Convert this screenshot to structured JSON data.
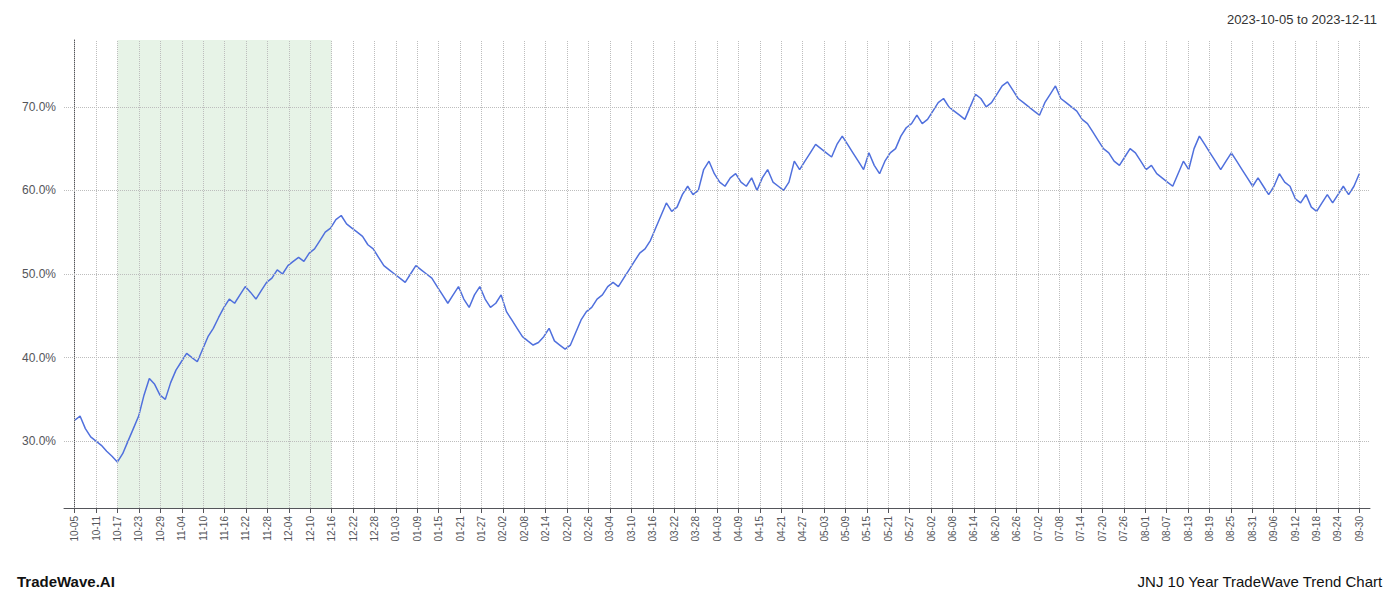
{
  "chart_data": {
    "type": "line",
    "annotations": [
      "2023-10-05 to 2023-12-11",
      "TradeWave.AI",
      "JNJ 10 Year TradeWave Trend Chart"
    ],
    "x": [
      0,
      0.249,
      0.4979,
      0.7469,
      0.9959,
      1.2448,
      1.4938,
      1.7427,
      1.9917,
      2.2407,
      2.4896,
      2.7386,
      2.9876,
      3.2365,
      3.4855,
      3.7344,
      3.9834,
      4.2324,
      4.4813,
      4.7303,
      4.9793,
      5.2282,
      5.4772,
      5.7261,
      5.9751,
      6.2241,
      6.473,
      6.722,
      6.971,
      7.2199,
      7.4689,
      7.7178,
      7.9668,
      8.2158,
      8.4647,
      8.7137,
      8.9627,
      9.2116,
      9.4606,
      9.7095,
      9.9585,
      10.2075,
      10.4564,
      10.7054,
      10.9544,
      11.2033,
      11.4523,
      11.7012,
      11.9502,
      12.1992,
      12.4481,
      12.6971,
      12.9461,
      13.195,
      13.444,
      13.6929,
      13.9419,
      14.1909,
      14.4398,
      14.6888,
      14.9378,
      15.1867,
      15.4357,
      15.6846,
      15.9336,
      16.1826,
      16.4315,
      16.6805,
      16.9295,
      17.1784,
      17.4274,
      17.6763,
      17.9253,
      18.1743,
      18.4232,
      18.6722,
      18.9212,
      19.1701,
      19.4191,
      19.668,
      19.917,
      20.166,
      20.4149,
      20.6639,
      20.9129,
      21.1618,
      21.4108,
      21.6598,
      21.9087,
      22.1577,
      22.4066,
      22.6556,
      22.9046,
      23.1535,
      23.4025,
      23.6515,
      23.9004,
      24.1494,
      24.3983,
      24.6473,
      24.8963,
      25.1452,
      25.3942,
      25.6432,
      25.8921,
      26.1411,
      26.39,
      26.639,
      26.888,
      27.1369,
      27.3859,
      27.6349,
      27.8838,
      28.1328,
      28.3817,
      28.6307,
      28.8797,
      29.1286,
      29.3776,
      29.6266,
      29.8755,
      30.1245,
      30.3734,
      30.6224,
      30.8714,
      31.1203,
      31.3693,
      31.6183,
      31.8672,
      32.1162,
      32.3651,
      32.6141,
      32.8631,
      33.112,
      33.361,
      33.61,
      33.8589,
      34.1079,
      34.3568,
      34.6058,
      34.8548,
      35.1037,
      35.3527,
      35.6017,
      35.8506,
      36.0996,
      36.3485,
      36.5975,
      36.8465,
      37.0954,
      37.3444,
      37.5934,
      37.8423,
      38.0913,
      38.3402,
      38.5892,
      38.8382,
      39.0871,
      39.3361,
      39.5851,
      39.834,
      40.083,
      40.332,
      40.5809,
      40.8299,
      41.0788,
      41.3278,
      41.5768,
      41.8257,
      42.0747,
      42.3237,
      42.5726,
      42.8216,
      43.0705,
      43.3195,
      43.5685,
      43.8174,
      44.0664,
      44.3154,
      44.5643,
      44.8133,
      45.0622,
      45.3112,
      45.5602,
      45.8091,
      46.0581,
      46.3071,
      46.556,
      46.805,
      47.0539,
      47.3029,
      47.5519,
      47.8008,
      48.0498,
      48.2988,
      48.5477,
      48.7967,
      49.0456,
      49.2946,
      49.5436,
      49.7925,
      50.0415,
      50.2905,
      50.5394,
      50.7884,
      51.0373,
      51.2863,
      51.5353,
      51.7842,
      52.0332,
      52.2822,
      52.5311,
      52.7801,
      53.029,
      53.278,
      53.527,
      53.7759,
      54.0249,
      54.2739,
      54.5228,
      54.7718,
      55.0207,
      55.2697,
      55.5187,
      55.7676,
      56.0166,
      56.2656,
      56.5145,
      56.7635,
      57.0124,
      57.2614,
      57.5104,
      57.7593,
      58.0083,
      58.2573,
      58.5062,
      58.7552,
      59.0041,
      59.2531,
      59.5021,
      59.751,
      60
    ],
    "values": [
      32.5,
      33.0,
      31.5,
      30.5,
      30.0,
      29.5,
      28.8,
      28.2,
      27.5,
      28.5,
      30.0,
      31.5,
      33.0,
      35.5,
      37.5,
      36.8,
      35.5,
      35.0,
      37.0,
      38.5,
      39.5,
      40.5,
      40.0,
      39.5,
      41.0,
      42.5,
      43.5,
      44.8,
      46.0,
      47.0,
      46.5,
      47.5,
      48.5,
      47.8,
      47.0,
      48.0,
      49.0,
      49.5,
      50.5,
      50.0,
      51.0,
      51.5,
      52.0,
      51.5,
      52.5,
      53.0,
      54.0,
      55.0,
      55.5,
      56.5,
      57.0,
      56.0,
      55.5,
      55.0,
      54.5,
      53.5,
      53.0,
      52.0,
      51.0,
      50.5,
      50.0,
      49.5,
      49.0,
      50.0,
      51.0,
      50.5,
      50.0,
      49.5,
      48.5,
      47.5,
      46.5,
      47.5,
      48.5,
      47.0,
      46.0,
      47.5,
      48.5,
      47.0,
      46.0,
      46.5,
      47.5,
      45.5,
      44.5,
      43.5,
      42.5,
      42.0,
      41.5,
      41.8,
      42.5,
      43.5,
      42.0,
      41.5,
      41.0,
      41.5,
      43.0,
      44.5,
      45.5,
      46.0,
      47.0,
      47.5,
      48.5,
      49.0,
      48.5,
      49.5,
      50.5,
      51.5,
      52.5,
      53.0,
      54.0,
      55.5,
      57.0,
      58.5,
      57.5,
      58.0,
      59.5,
      60.5,
      59.5,
      60.0,
      62.5,
      63.5,
      62.0,
      61.0,
      60.5,
      61.5,
      62.0,
      61.0,
      60.5,
      61.5,
      60.0,
      61.5,
      62.5,
      61.0,
      60.5,
      60.0,
      61.0,
      63.5,
      62.5,
      63.5,
      64.5,
      65.5,
      65.0,
      64.5,
      64.0,
      65.5,
      66.5,
      65.5,
      64.5,
      63.5,
      62.5,
      64.5,
      63.0,
      62.0,
      63.5,
      64.5,
      65.0,
      66.5,
      67.5,
      68.0,
      69.0,
      68.0,
      68.5,
      69.5,
      70.5,
      71.0,
      70.0,
      69.5,
      69.0,
      68.5,
      70.0,
      71.5,
      71.0,
      70.0,
      70.5,
      71.5,
      72.5,
      73.0,
      72.0,
      71.0,
      70.5,
      70.0,
      69.5,
      69.0,
      70.5,
      71.5,
      72.5,
      71.0,
      70.5,
      70.0,
      69.5,
      68.5,
      68.0,
      67.0,
      66.0,
      65.0,
      64.5,
      63.5,
      63.0,
      64.0,
      65.0,
      64.5,
      63.5,
      62.5,
      63.0,
      62.0,
      61.5,
      61.0,
      60.5,
      62.0,
      63.5,
      62.5,
      65.0,
      66.5,
      65.5,
      64.5,
      63.5,
      62.5,
      63.5,
      64.5,
      63.5,
      62.5,
      61.5,
      60.5,
      61.5,
      60.5,
      59.5,
      60.5,
      62.0,
      61.0,
      60.5,
      59.0,
      58.5,
      59.5,
      58.0,
      57.5,
      58.5,
      59.5,
      58.5,
      59.5,
      60.5,
      59.5,
      60.5,
      62.0
    ],
    "xlim": [
      -0.5,
      60.5
    ],
    "xticks": [
      {
        "value": 0,
        "label": "10-05"
      },
      {
        "value": 1,
        "label": "10-11"
      },
      {
        "value": 2,
        "label": "10-17"
      },
      {
        "value": 3,
        "label": "10-23"
      },
      {
        "value": 4,
        "label": "10-29"
      },
      {
        "value": 5,
        "label": "11-04"
      },
      {
        "value": 6,
        "label": "11-10"
      },
      {
        "value": 7,
        "label": "11-16"
      },
      {
        "value": 8,
        "label": "11-22"
      },
      {
        "value": 9,
        "label": "11-28"
      },
      {
        "value": 10,
        "label": "12-04"
      },
      {
        "value": 11,
        "label": "12-10"
      },
      {
        "value": 12,
        "label": "12-16"
      },
      {
        "value": 13,
        "label": "12-22"
      },
      {
        "value": 14,
        "label": "12-28"
      },
      {
        "value": 15,
        "label": "01-03"
      },
      {
        "value": 16,
        "label": "01-09"
      },
      {
        "value": 17,
        "label": "01-15"
      },
      {
        "value": 18,
        "label": "01-21"
      },
      {
        "value": 19,
        "label": "01-27"
      },
      {
        "value": 20,
        "label": "02-02"
      },
      {
        "value": 21,
        "label": "02-08"
      },
      {
        "value": 22,
        "label": "02-14"
      },
      {
        "value": 23,
        "label": "02-20"
      },
      {
        "value": 24,
        "label": "02-26"
      },
      {
        "value": 25,
        "label": "03-04"
      },
      {
        "value": 26,
        "label": "03-10"
      },
      {
        "value": 27,
        "label": "03-16"
      },
      {
        "value": 28,
        "label": "03-22"
      },
      {
        "value": 29,
        "label": "03-28"
      },
      {
        "value": 30,
        "label": "04-03"
      },
      {
        "value": 31,
        "label": "04-09"
      },
      {
        "value": 32,
        "label": "04-15"
      },
      {
        "value": 33,
        "label": "04-21"
      },
      {
        "value": 34,
        "label": "04-27"
      },
      {
        "value": 35,
        "label": "05-03"
      },
      {
        "value": 36,
        "label": "05-09"
      },
      {
        "value": 37,
        "label": "05-15"
      },
      {
        "value": 38,
        "label": "05-21"
      },
      {
        "value": 39,
        "label": "05-27"
      },
      {
        "value": 40,
        "label": "06-02"
      },
      {
        "value": 41,
        "label": "06-08"
      },
      {
        "value": 42,
        "label": "06-14"
      },
      {
        "value": 43,
        "label": "06-20"
      },
      {
        "value": 44,
        "label": "06-26"
      },
      {
        "value": 45,
        "label": "07-02"
      },
      {
        "value": 46,
        "label": "07-08"
      },
      {
        "value": 47,
        "label": "07-14"
      },
      {
        "value": 48,
        "label": "07-20"
      },
      {
        "value": 49,
        "label": "07-26"
      },
      {
        "value": 50,
        "label": "08-01"
      },
      {
        "value": 51,
        "label": "08-07"
      },
      {
        "value": 52,
        "label": "08-13"
      },
      {
        "value": 53,
        "label": "08-19"
      },
      {
        "value": 54,
        "label": "08-25"
      },
      {
        "value": 55,
        "label": "08-31"
      },
      {
        "value": 56,
        "label": "09-06"
      },
      {
        "value": 57,
        "label": "09-12"
      },
      {
        "value": 58,
        "label": "09-18"
      },
      {
        "value": 59,
        "label": "09-24"
      },
      {
        "value": 60,
        "label": "09-30"
      }
    ],
    "ylim": [
      22,
      78
    ],
    "yticks": [
      {
        "value": 30,
        "label": "30.0%"
      },
      {
        "value": 40,
        "label": "40.0%"
      },
      {
        "value": 50,
        "label": "50.0%"
      },
      {
        "value": 60,
        "label": "60.0%"
      },
      {
        "value": 70,
        "label": "70.0%"
      }
    ],
    "grid": true,
    "highlight": {
      "start": 2,
      "end": 12,
      "color": "#d4e9d4"
    }
  }
}
